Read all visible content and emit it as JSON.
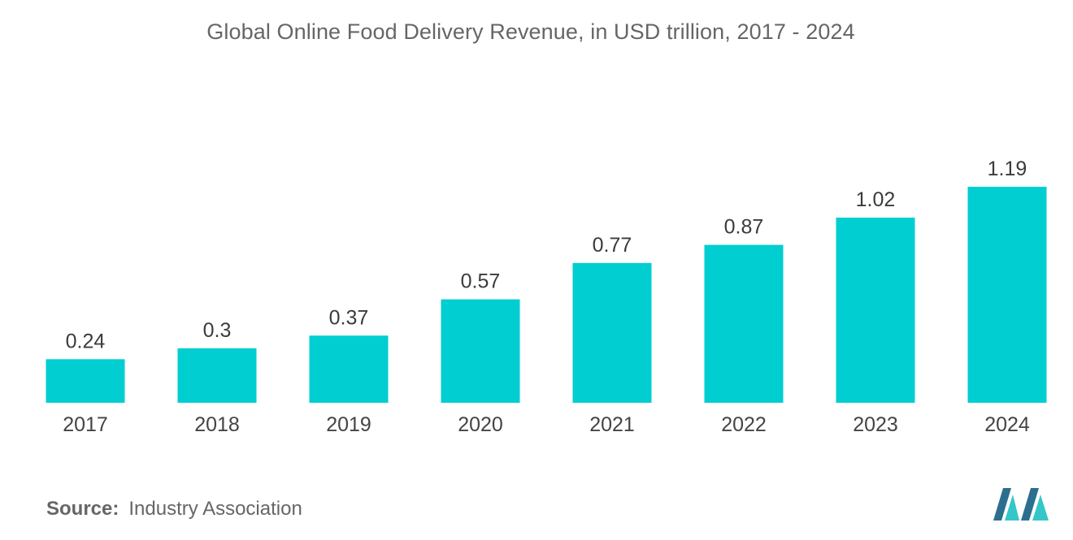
{
  "chart_data": {
    "type": "bar",
    "title": "Global Online Food Delivery Revenue, in USD trillion, 2017 - 2024",
    "categories": [
      "2017",
      "2018",
      "2019",
      "2020",
      "2021",
      "2022",
      "2023",
      "2024"
    ],
    "values": [
      0.24,
      0.3,
      0.37,
      0.57,
      0.77,
      0.87,
      1.02,
      1.19
    ],
    "value_labels": [
      "0.24",
      "0.3",
      "0.37",
      "0.57",
      "0.77",
      "0.87",
      "1.02",
      "1.19"
    ],
    "xlabel": "",
    "ylabel": "",
    "ylim": [
      0,
      1.19
    ],
    "grid": false,
    "legend": "none",
    "bar_color": "#00CED1"
  },
  "source": {
    "label": "Source:",
    "text": "Industry Association"
  },
  "colors": {
    "bar": "#00CED1",
    "logo_dark": "#2C6E8F",
    "logo_light": "#35C6C9"
  },
  "logo_icon": "mordor-intelligence-logo-icon"
}
